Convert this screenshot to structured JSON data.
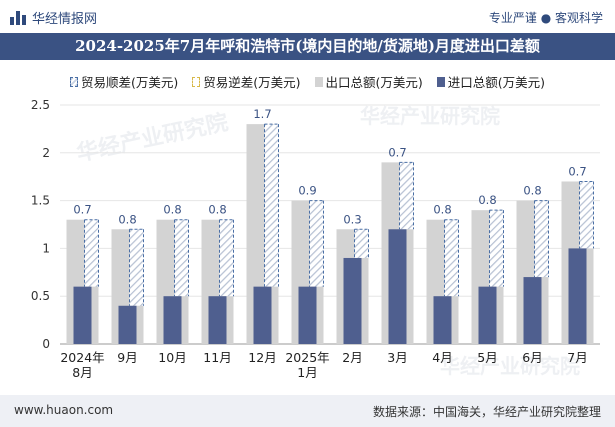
{
  "header": {
    "brand_name": "华经情报网",
    "tagline": "专业严谨 ● 客观科学",
    "title": "2024-2025年7月年呼和浩特市(境内目的地/货源地)月度进出口差额"
  },
  "footer": {
    "website": "www.huaon.com",
    "source": "数据来源：中国海关，华经产业研究院整理"
  },
  "watermark": {
    "text1": "华经产业研究院",
    "text2": "www.huaon.com"
  },
  "colors": {
    "export": "#d3d3d3",
    "import": "#4f5f8f",
    "surplus_border": "#4a6fa5",
    "title_bg": "#3a5283"
  },
  "chart_data": {
    "type": "bar",
    "categories": [
      "2024年\n8月",
      "9月",
      "10月",
      "11月",
      "12月",
      "2025年\n1月",
      "2月",
      "3月",
      "4月",
      "5月",
      "6月",
      "7月"
    ],
    "series": [
      {
        "name": "出口总额(万美元)",
        "values": [
          1.3,
          1.2,
          1.3,
          1.3,
          2.3,
          1.5,
          1.2,
          1.9,
          1.3,
          1.4,
          1.5,
          1.7
        ]
      },
      {
        "name": "进口总额(万美元)",
        "values": [
          0.6,
          0.4,
          0.5,
          0.5,
          0.6,
          0.6,
          0.9,
          1.2,
          0.5,
          0.6,
          0.7,
          1.0
        ]
      },
      {
        "name": "贸易顺差(万美元)",
        "values": [
          0.7,
          0.8,
          0.8,
          0.8,
          1.7,
          0.9,
          0.3,
          0.7,
          0.8,
          0.8,
          0.8,
          0.7
        ]
      },
      {
        "name": "贸易逆差(万美元)",
        "values": [
          0,
          0,
          0,
          0,
          0,
          0,
          0,
          0,
          0,
          0,
          0,
          0
        ]
      }
    ],
    "data_labels": [
      "0.7",
      "0.8",
      "0.8",
      "0.8",
      "1.7",
      "0.9",
      "0.3",
      "0.7",
      "0.8",
      "0.8",
      "0.8",
      "0.7"
    ],
    "y_ticks": [
      "0",
      "0.5",
      "1",
      "1.5",
      "2",
      "2.5"
    ],
    "ylim": [
      0,
      2.5
    ],
    "legend_position": "top"
  }
}
